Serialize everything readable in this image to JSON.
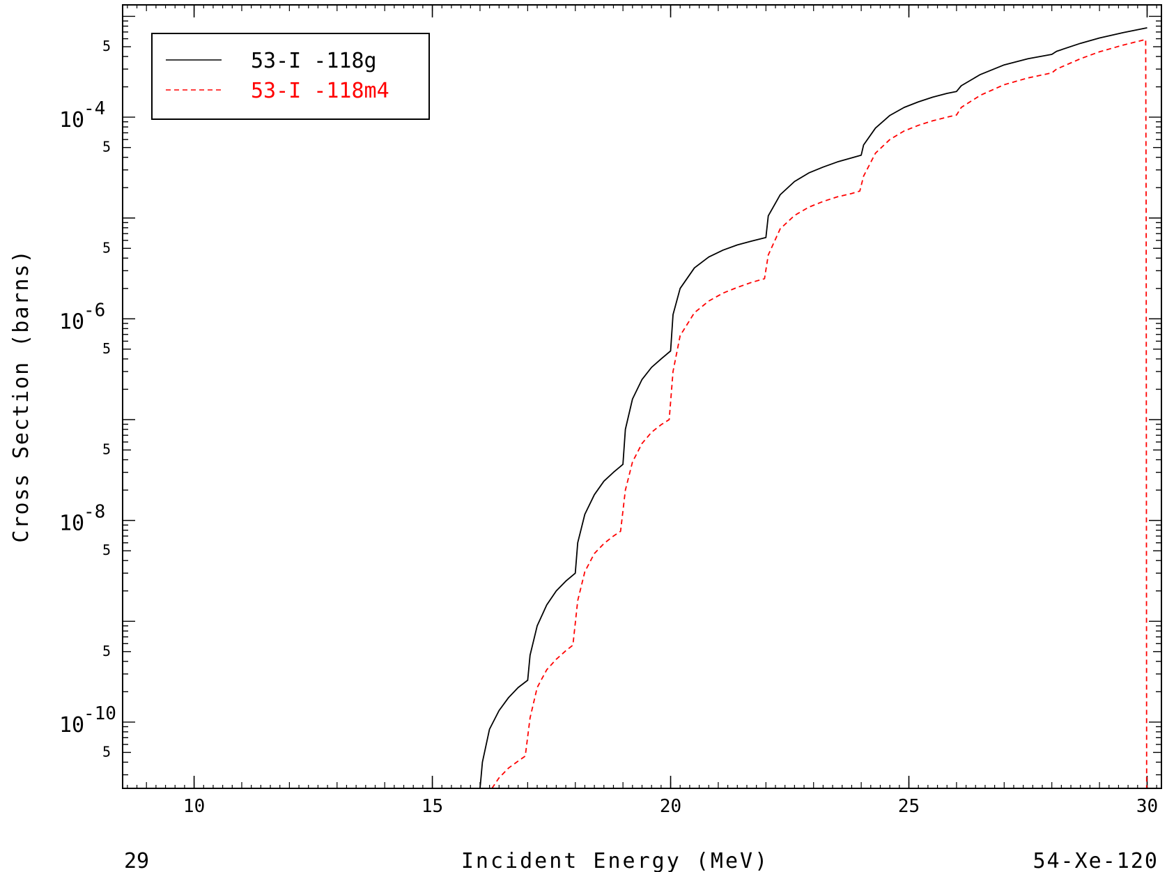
{
  "chart_data": {
    "type": "line",
    "title": "",
    "xlabel": "Incident Energy (MeV)",
    "ylabel": "Cross Section (barns)",
    "x_scale": "linear",
    "y_scale": "log",
    "xlim": [
      8.5,
      30.3
    ],
    "ylim": [
      2.2e-11,
      0.0013
    ],
    "x_ticks": [
      10,
      15,
      20,
      25,
      30
    ],
    "y_decade_labels": [
      {
        "value": 0.0001,
        "base": "10",
        "exp": "-4"
      },
      {
        "value": 1e-06,
        "base": "10",
        "exp": "-6"
      },
      {
        "value": 1e-08,
        "base": "10",
        "exp": "-8"
      },
      {
        "value": 1e-10,
        "base": "10",
        "exp": "-10"
      }
    ],
    "y_five_labels": [
      0.0005,
      5e-05,
      5e-06,
      5e-07,
      5e-08,
      5e-09,
      5e-10,
      5e-11
    ],
    "y_five_label_text": "5",
    "grid": false,
    "legend_position": "top-left",
    "footer_left": "29",
    "footer_right": "54-Xe-120",
    "series": [
      {
        "name": "53-I -118g",
        "color": "#000000",
        "dash": "solid",
        "x": [
          16.0,
          16.05,
          16.2,
          16.4,
          16.6,
          16.8,
          17.0,
          17.05,
          17.2,
          17.4,
          17.6,
          17.8,
          18.0,
          18.05,
          18.2,
          18.4,
          18.6,
          18.8,
          19.0,
          19.05,
          19.2,
          19.4,
          19.6,
          19.8,
          20.0,
          20.05,
          20.2,
          20.5,
          20.8,
          21.1,
          21.4,
          21.7,
          22.0,
          22.05,
          22.3,
          22.6,
          22.9,
          23.2,
          23.5,
          23.8,
          24.0,
          24.05,
          24.3,
          24.6,
          24.9,
          25.2,
          25.5,
          25.8,
          26.0,
          26.1,
          26.5,
          27.0,
          27.5,
          28.0,
          28.1,
          28.6,
          29.0,
          29.5,
          30.0
        ],
        "y": [
          2e-11,
          4e-11,
          8.5e-11,
          1.3e-10,
          1.75e-10,
          2.2e-10,
          2.6e-10,
          4.6e-10,
          9e-10,
          1.45e-09,
          2e-09,
          2.5e-09,
          3e-09,
          6e-09,
          1.15e-08,
          1.8e-08,
          2.45e-08,
          3e-08,
          3.6e-08,
          8e-08,
          1.6e-07,
          2.5e-07,
          3.3e-07,
          4e-07,
          4.8e-07,
          1.1e-06,
          2e-06,
          3.2e-06,
          4.1e-06,
          4.8e-06,
          5.4e-06,
          5.9e-06,
          6.4e-06,
          1.05e-05,
          1.7e-05,
          2.3e-05,
          2.8e-05,
          3.2e-05,
          3.6e-05,
          3.95e-05,
          4.2e-05,
          5.3e-05,
          7.8e-05,
          0.000104,
          0.000125,
          0.000142,
          0.000158,
          0.000172,
          0.00018,
          0.000205,
          0.000265,
          0.00033,
          0.00038,
          0.00042,
          0.00045,
          0.00054,
          0.00061,
          0.00069,
          0.00077
        ]
      },
      {
        "name": "53-I -118m4",
        "color": "#ff0000",
        "dash": "dashed",
        "x": [
          16.25,
          16.4,
          16.6,
          16.8,
          16.95,
          17.05,
          17.2,
          17.4,
          17.6,
          17.8,
          17.95,
          18.05,
          18.2,
          18.4,
          18.6,
          18.8,
          18.95,
          19.05,
          19.2,
          19.4,
          19.6,
          19.8,
          19.97,
          20.05,
          20.2,
          20.5,
          20.8,
          21.1,
          21.4,
          21.7,
          21.97,
          22.05,
          22.3,
          22.6,
          22.9,
          23.2,
          23.5,
          23.8,
          23.97,
          24.05,
          24.3,
          24.6,
          24.9,
          25.2,
          25.5,
          25.8,
          26.0,
          26.1,
          26.5,
          27.0,
          27.5,
          28.0,
          28.1,
          28.6,
          29.0,
          29.5,
          29.97,
          29.98,
          29.99
        ],
        "y": [
          2e-11,
          2.8e-11,
          3.5e-11,
          4.1e-11,
          4.6e-11,
          1.1e-10,
          2.2e-10,
          3.3e-10,
          4.2e-10,
          5.1e-10,
          5.8e-10,
          1.6e-09,
          3.1e-09,
          4.7e-09,
          5.9e-09,
          7e-09,
          7.8e-09,
          2e-08,
          3.8e-08,
          5.8e-08,
          7.5e-08,
          8.9e-08,
          1e-07,
          3e-07,
          6.8e-07,
          1.15e-06,
          1.5e-06,
          1.8e-06,
          2.05e-06,
          2.3e-06,
          2.5e-06,
          4.3e-06,
          7.8e-06,
          1.06e-05,
          1.28e-05,
          1.46e-05,
          1.62e-05,
          1.75e-05,
          1.85e-05,
          2.6e-05,
          4.4e-05,
          6e-05,
          7.3e-05,
          8.3e-05,
          9.2e-05,
          0.0001,
          0.000105,
          0.000125,
          0.000165,
          0.00021,
          0.000245,
          0.000275,
          0.0003,
          0.00038,
          0.000445,
          0.00052,
          0.00059,
          1e-05,
          2e-11
        ]
      }
    ]
  }
}
